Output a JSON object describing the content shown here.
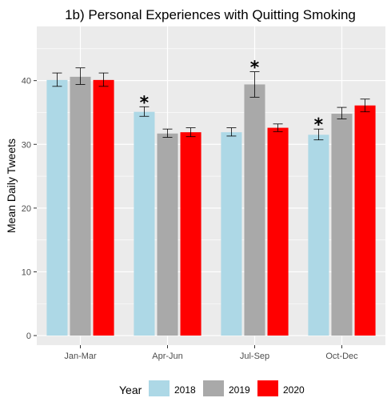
{
  "chart_data": {
    "type": "bar",
    "title": "1b) Personal Experiences with Quitting Smoking",
    "xlabel": "",
    "ylabel": "Mean Daily Tweets",
    "categories": [
      "Jan-Mar",
      "Apr-Jun",
      "Jul-Sep",
      "Oct-Dec"
    ],
    "ylim": [
      -1.5,
      48.5
    ],
    "yticks": [
      0,
      10,
      20,
      30,
      40
    ],
    "grid": true,
    "legend": {
      "title": "Year",
      "position": "bottom"
    },
    "series": [
      {
        "name": "2018",
        "color": "#add8e6",
        "values": [
          40.1,
          35.1,
          31.9,
          31.5
        ],
        "error_low": [
          39.1,
          34.4,
          31.3,
          30.7
        ],
        "error_high": [
          41.2,
          35.9,
          32.6,
          32.4
        ]
      },
      {
        "name": "2019",
        "color": "#a9a9a9",
        "values": [
          40.6,
          31.7,
          39.4,
          34.8
        ],
        "error_low": [
          39.4,
          31.1,
          37.4,
          34.0
        ],
        "error_high": [
          42.0,
          32.4,
          41.4,
          35.8
        ]
      },
      {
        "name": "2020",
        "color": "#ff0000",
        "values": [
          40.1,
          31.9,
          32.6,
          36.1
        ],
        "error_low": [
          39.1,
          31.2,
          32.0,
          35.1
        ],
        "error_high": [
          41.2,
          32.6,
          33.2,
          37.1
        ]
      }
    ],
    "annotations": [
      {
        "text": "*",
        "category": "Apr-Jun",
        "series": "2018"
      },
      {
        "text": "*",
        "category": "Jul-Sep",
        "series": "2019"
      },
      {
        "text": "*",
        "category": "Oct-Dec",
        "series": "2018"
      }
    ]
  }
}
